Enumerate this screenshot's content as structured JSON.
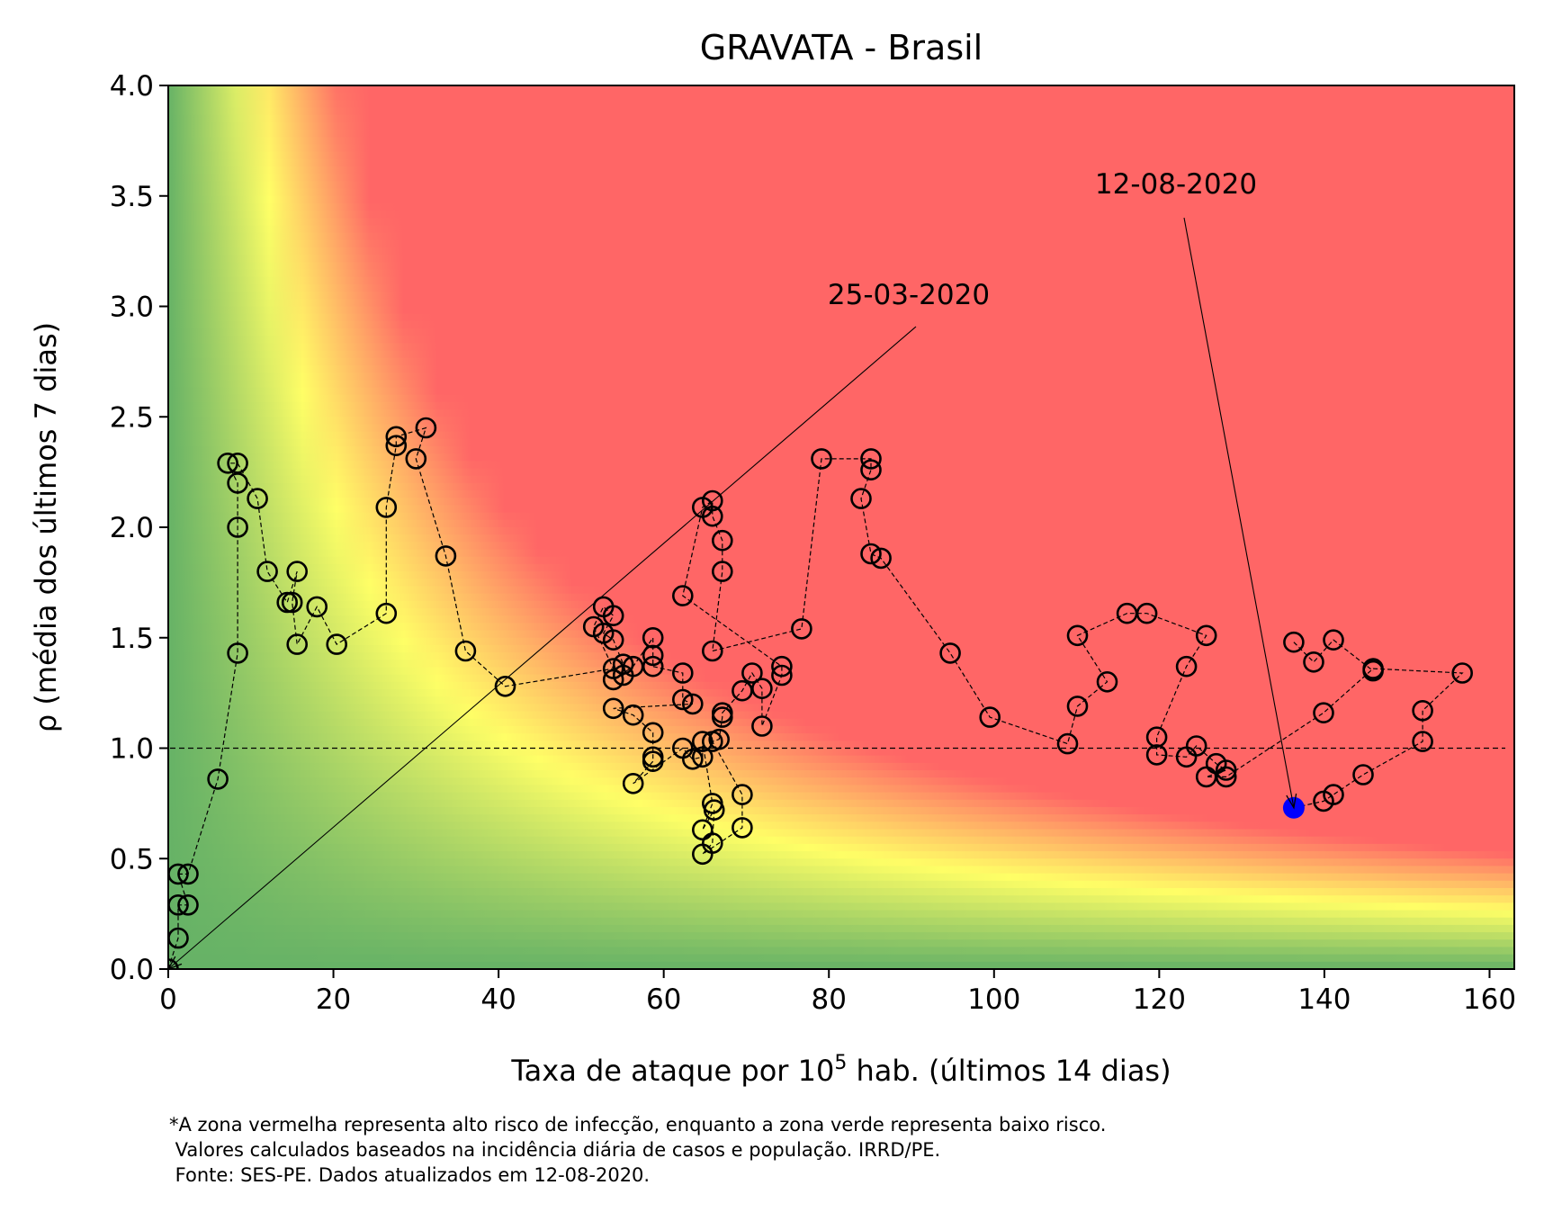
{
  "chart_data": {
    "type": "scatter",
    "title": "GRAVATA - Brasil",
    "xlabel": "Taxa de ataque por 10⁵ hab. (últimos 14 dias)",
    "xlabel_main": "Taxa de ataque por 10",
    "xlabel_sup": "5",
    "xlabel_rest": " hab. (últimos 14 dias)",
    "ylabel": "ρ (média dos últimos 7 dias)",
    "xlim": [
      0,
      163
    ],
    "ylim": [
      0,
      4
    ],
    "xticks": [
      0,
      20,
      40,
      60,
      80,
      100,
      120,
      140,
      160
    ],
    "yticks": [
      "0.0",
      "0.5",
      "1.0",
      "1.5",
      "2.0",
      "2.5",
      "3.0",
      "3.5",
      "4.0"
    ],
    "reference_line_y": 1.0,
    "background": "risk heatmap: green (low risk) → yellow → red (high risk), boundary along rho × rate ≈ constant",
    "colors": {
      "low": "#66b266",
      "mid": "#ffff66",
      "high": "#ff6666",
      "marker": "#000000",
      "last_point": "#0000ff"
    },
    "points": [
      [
        0.0,
        0.0
      ],
      [
        1.2,
        0.14
      ],
      [
        1.2,
        0.29
      ],
      [
        2.4,
        0.29
      ],
      [
        1.2,
        0.43
      ],
      [
        2.4,
        0.43
      ],
      [
        6.0,
        0.86
      ],
      [
        8.4,
        1.43
      ],
      [
        8.4,
        2.0
      ],
      [
        8.4,
        2.2
      ],
      [
        7.2,
        2.29
      ],
      [
        8.4,
        2.29
      ],
      [
        10.8,
        2.13
      ],
      [
        12.0,
        1.8
      ],
      [
        14.4,
        1.66
      ],
      [
        15.6,
        1.8
      ],
      [
        15.0,
        1.66
      ],
      [
        15.6,
        1.47
      ],
      [
        18.0,
        1.64
      ],
      [
        20.4,
        1.47
      ],
      [
        26.4,
        1.61
      ],
      [
        26.4,
        2.09
      ],
      [
        27.6,
        2.37
      ],
      [
        27.6,
        2.41
      ],
      [
        31.2,
        2.45
      ],
      [
        30.0,
        2.31
      ],
      [
        33.6,
        1.87
      ],
      [
        36.0,
        1.44
      ],
      [
        40.8,
        1.28
      ],
      [
        53.9,
        1.36
      ],
      [
        51.5,
        1.55
      ],
      [
        52.7,
        1.64
      ],
      [
        53.9,
        1.6
      ],
      [
        52.7,
        1.52
      ],
      [
        53.9,
        1.49
      ],
      [
        55.1,
        1.38
      ],
      [
        55.1,
        1.33
      ],
      [
        53.9,
        1.31
      ],
      [
        56.3,
        1.37
      ],
      [
        58.7,
        1.5
      ],
      [
        58.7,
        1.42
      ],
      [
        58.7,
        1.37
      ],
      [
        62.3,
        1.34
      ],
      [
        62.3,
        1.22
      ],
      [
        63.5,
        1.2
      ],
      [
        53.9,
        1.18
      ],
      [
        56.3,
        1.15
      ],
      [
        58.7,
        1.07
      ],
      [
        58.7,
        0.96
      ],
      [
        58.7,
        0.94
      ],
      [
        56.3,
        0.84
      ],
      [
        62.3,
        1.0
      ],
      [
        63.5,
        0.95
      ],
      [
        64.7,
        0.96
      ],
      [
        64.7,
        1.03
      ],
      [
        65.9,
        0.75
      ],
      [
        64.7,
        0.63
      ],
      [
        66.1,
        0.72
      ],
      [
        65.9,
        0.57
      ],
      [
        64.7,
        0.52
      ],
      [
        69.5,
        0.64
      ],
      [
        69.5,
        0.79
      ],
      [
        65.9,
        1.03
      ],
      [
        66.7,
        1.04
      ],
      [
        67.1,
        1.14
      ],
      [
        67.1,
        1.16
      ],
      [
        69.5,
        1.26
      ],
      [
        70.7,
        1.34
      ],
      [
        71.9,
        1.27
      ],
      [
        71.9,
        1.1
      ],
      [
        74.3,
        1.33
      ],
      [
        74.3,
        1.37
      ],
      [
        62.3,
        1.69
      ],
      [
        64.7,
        2.09
      ],
      [
        65.9,
        2.12
      ],
      [
        65.9,
        2.05
      ],
      [
        67.1,
        1.94
      ],
      [
        67.1,
        1.8
      ],
      [
        65.9,
        1.44
      ],
      [
        76.7,
        1.54
      ],
      [
        79.1,
        2.31
      ],
      [
        85.1,
        2.31
      ],
      [
        85.1,
        2.26
      ],
      [
        83.9,
        2.13
      ],
      [
        85.1,
        1.88
      ],
      [
        86.3,
        1.86
      ],
      [
        94.7,
        1.43
      ],
      [
        99.5,
        1.14
      ],
      [
        108.9,
        1.02
      ],
      [
        110.1,
        1.19
      ],
      [
        113.7,
        1.3
      ],
      [
        110.1,
        1.51
      ],
      [
        116.1,
        1.61
      ],
      [
        118.5,
        1.61
      ],
      [
        125.7,
        1.51
      ],
      [
        123.3,
        1.37
      ],
      [
        119.7,
        1.05
      ],
      [
        119.7,
        0.97
      ],
      [
        123.3,
        0.96
      ],
      [
        124.5,
        1.01
      ],
      [
        126.9,
        0.93
      ],
      [
        128.1,
        0.9
      ],
      [
        125.7,
        0.87
      ],
      [
        128.1,
        0.87
      ],
      [
        139.9,
        1.16
      ],
      [
        145.9,
        1.36
      ],
      [
        156.7,
        1.34
      ],
      [
        151.9,
        1.17
      ],
      [
        151.9,
        1.03
      ],
      [
        144.7,
        0.88
      ],
      [
        141.1,
        0.79
      ],
      [
        139.9,
        0.76
      ],
      [
        136.3,
        0.73
      ]
    ],
    "extra_markers": [
      [
        136.3,
        1.48
      ],
      [
        138.7,
        1.39
      ],
      [
        141.1,
        1.49
      ],
      [
        145.9,
        1.35
      ]
    ],
    "annotations": [
      {
        "text": "25-03-2020",
        "x": 0.0,
        "y": 0.0
      },
      {
        "text": "12-08-2020",
        "x": 136.3,
        "y": 0.73
      }
    ]
  },
  "caption": {
    "line1": "*A zona vermelha representa alto risco de infecção, enquanto a zona verde representa baixo risco.",
    "line2": " Valores calculados baseados na incidência diária de casos e população. IRRD/PE.",
    "line3": " Fonte: SES-PE. Dados atualizados em 12-08-2020."
  }
}
